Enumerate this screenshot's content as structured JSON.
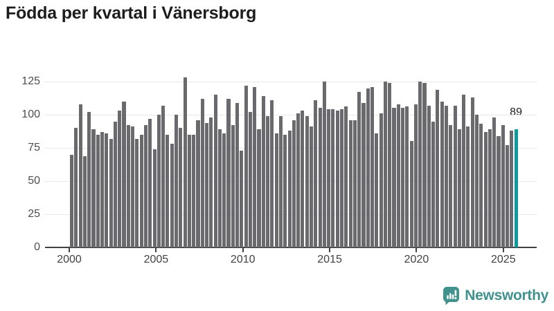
{
  "title": "Födda per kvartal i Vänersborg",
  "annotation": {
    "last_value_label": "89"
  },
  "footer": {
    "brand": "Newsworthy"
  },
  "colors": {
    "bar": "#69696e",
    "highlight": "#0d9a9c",
    "title_text": "#1d1d1d",
    "axis_text": "#4d4d4d",
    "gridline": "#e8e8e8",
    "axis_line": "#414141",
    "brand_teal": "#41918e"
  },
  "chart_data": {
    "type": "bar",
    "title": "Födda per kvartal i Vänersborg",
    "xlabel": "",
    "ylabel": "",
    "ylim": [
      0,
      130
    ],
    "grid": "horizontal",
    "y_ticks": [
      0,
      25,
      50,
      75,
      100,
      125
    ],
    "x_tick_labels": [
      "2000",
      "2005",
      "2010",
      "2015",
      "2020",
      "2025"
    ],
    "bar_color": "#69696e",
    "highlight_color": "#0d9a9c",
    "highlight_index": 102,
    "highlight_value_label": "89",
    "legend": "none",
    "categories": [
      "2000 Q1",
      "2000 Q2",
      "2000 Q3",
      "2000 Q4",
      "2001 Q1",
      "2001 Q2",
      "2001 Q3",
      "2001 Q4",
      "2002 Q1",
      "2002 Q2",
      "2002 Q3",
      "2002 Q4",
      "2003 Q1",
      "2003 Q2",
      "2003 Q3",
      "2003 Q4",
      "2004 Q1",
      "2004 Q2",
      "2004 Q3",
      "2004 Q4",
      "2005 Q1",
      "2005 Q2",
      "2005 Q3",
      "2005 Q4",
      "2006 Q1",
      "2006 Q2",
      "2006 Q3",
      "2006 Q4",
      "2007 Q1",
      "2007 Q2",
      "2007 Q3",
      "2007 Q4",
      "2008 Q1",
      "2008 Q2",
      "2008 Q3",
      "2008 Q4",
      "2009 Q1",
      "2009 Q2",
      "2009 Q3",
      "2009 Q4",
      "2010 Q1",
      "2010 Q2",
      "2010 Q3",
      "2010 Q4",
      "2011 Q1",
      "2011 Q2",
      "2011 Q3",
      "2011 Q4",
      "2012 Q1",
      "2012 Q2",
      "2012 Q3",
      "2012 Q4",
      "2013 Q1",
      "2013 Q2",
      "2013 Q3",
      "2013 Q4",
      "2014 Q1",
      "2014 Q2",
      "2014 Q3",
      "2014 Q4",
      "2015 Q1",
      "2015 Q2",
      "2015 Q3",
      "2015 Q4",
      "2016 Q1",
      "2016 Q2",
      "2016 Q3",
      "2016 Q4",
      "2017 Q1",
      "2017 Q2",
      "2017 Q3",
      "2017 Q4",
      "2018 Q1",
      "2018 Q2",
      "2018 Q3",
      "2018 Q4",
      "2019 Q1",
      "2019 Q2",
      "2019 Q3",
      "2019 Q4",
      "2020 Q1",
      "2020 Q2",
      "2020 Q3",
      "2020 Q4",
      "2021 Q1",
      "2021 Q2",
      "2021 Q3",
      "2021 Q4",
      "2022 Q1",
      "2022 Q2",
      "2022 Q3",
      "2022 Q4",
      "2023 Q1",
      "2023 Q2",
      "2023 Q3",
      "2023 Q4",
      "2024 Q1",
      "2024 Q2",
      "2024 Q3",
      "2024 Q4",
      "2025 Q1",
      "2025 Q2",
      "2025 Q3"
    ],
    "values": [
      70,
      90,
      108,
      69,
      102,
      89,
      85,
      87,
      86,
      82,
      95,
      103,
      110,
      92,
      91,
      82,
      85,
      92,
      97,
      74,
      100,
      107,
      85,
      78,
      100,
      90,
      128,
      85,
      85,
      96,
      112,
      94,
      98,
      115,
      89,
      86,
      112,
      92,
      109,
      73,
      122,
      102,
      121,
      89,
      114,
      99,
      111,
      86,
      99,
      85,
      88,
      96,
      101,
      103,
      99,
      91,
      111,
      105,
      125,
      104,
      104,
      103,
      104,
      106,
      96,
      96,
      117,
      109,
      120,
      121,
      86,
      101,
      125,
      124,
      105,
      108,
      105,
      106,
      80,
      108,
      125,
      124,
      107,
      95,
      119,
      110,
      107,
      92,
      107,
      89,
      115,
      91,
      113,
      100,
      93,
      87,
      89,
      98,
      84,
      92,
      77,
      88,
      89
    ]
  }
}
